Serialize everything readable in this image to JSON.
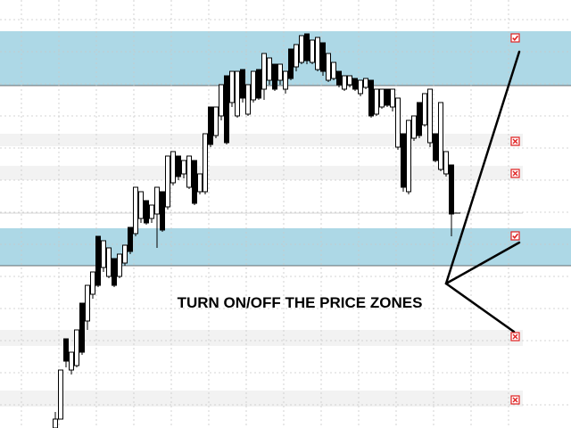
{
  "annotation": {
    "text": "TURN ON/OFF THE PRICE ZONES"
  },
  "colors": {
    "active_zone_fill": "#add8e6",
    "inactive_zone_fill": "#f2f2f2",
    "grid": "#c8c8c8",
    "candle": "#000000",
    "toggle_border": "#e02020",
    "toggle_mark": "#e02020",
    "pointer_line": "#000000"
  },
  "price_zones": [
    {
      "id": "zone-1",
      "active": true,
      "toggle_icon": "checkbox-checked-icon"
    },
    {
      "id": "zone-2",
      "active": false,
      "toggle_icon": "checkbox-x-icon"
    },
    {
      "id": "zone-3",
      "active": false,
      "toggle_icon": "checkbox-x-icon"
    },
    {
      "id": "zone-4",
      "active": true,
      "toggle_icon": "checkbox-checked-icon"
    },
    {
      "id": "zone-5",
      "active": false,
      "toggle_icon": "checkbox-x-icon"
    },
    {
      "id": "zone-6",
      "active": false,
      "toggle_icon": "checkbox-x-icon"
    }
  ]
}
